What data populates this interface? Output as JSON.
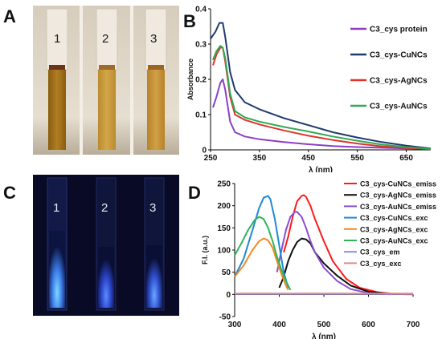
{
  "panels": {
    "A": {
      "letter": "A",
      "tube_labels": [
        "1",
        "2",
        "3"
      ]
    },
    "B": {
      "letter": "B"
    },
    "C": {
      "letter": "C",
      "tube_labels": [
        "1",
        "2",
        "3"
      ]
    },
    "D": {
      "letter": "D"
    }
  },
  "colors": {
    "protein": "#8b3fc4",
    "cunc": "#1f3a6e",
    "agnc": "#e0332a",
    "aunc": "#2faa53",
    "d_cu_emiss": "#ff1a1a",
    "d_ag_emiss": "#111111",
    "d_au_emiss": "#8a4ecf",
    "d_cu_exc": "#1e88d8",
    "d_ag_exc": "#f08a24",
    "d_au_exc": "#2fb35a",
    "d_em": "#8a8fd6",
    "d_exc": "#e08a8a"
  },
  "chart_data": [
    {
      "type": "line",
      "panel": "B",
      "xlabel": "λ (nm)",
      "ylabel": "Absorbance",
      "xlim": [
        250,
        700
      ],
      "ylim": [
        0,
        0.4
      ],
      "xticks": [
        250,
        350,
        450,
        550,
        650
      ],
      "yticks": [
        0,
        0.1,
        0.2,
        0.3,
        0.4
      ],
      "legend_position": "right",
      "series": [
        {
          "name": "C3_cys protein",
          "color_key": "protein",
          "x": [
            255,
            262,
            270,
            275,
            280,
            290,
            300,
            320,
            350,
            400,
            450,
            500,
            550,
            600,
            650,
            700
          ],
          "y": [
            0.12,
            0.15,
            0.19,
            0.2,
            0.17,
            0.08,
            0.05,
            0.038,
            0.03,
            0.022,
            0.016,
            0.011,
            0.008,
            0.006,
            0.004,
            0.003
          ]
        },
        {
          "name": "C3_cys-CuNCs",
          "color_key": "cunc",
          "x": [
            250,
            260,
            268,
            275,
            280,
            290,
            300,
            320,
            350,
            400,
            450,
            500,
            550,
            600,
            650,
            700
          ],
          "y": [
            0.315,
            0.335,
            0.36,
            0.36,
            0.32,
            0.22,
            0.17,
            0.135,
            0.115,
            0.09,
            0.07,
            0.05,
            0.035,
            0.022,
            0.012,
            0.004
          ]
        },
        {
          "name": "C3_cys-AgNCs",
          "color_key": "agnc",
          "x": [
            255,
            262,
            270,
            275,
            280,
            290,
            300,
            320,
            350,
            400,
            450,
            500,
            550,
            600,
            650,
            700
          ],
          "y": [
            0.24,
            0.27,
            0.29,
            0.29,
            0.25,
            0.15,
            0.1,
            0.085,
            0.072,
            0.055,
            0.04,
            0.028,
            0.018,
            0.01,
            0.005,
            0.002
          ]
        },
        {
          "name": "C3_cys-AuNCs",
          "color_key": "aunc",
          "x": [
            255,
            262,
            270,
            275,
            280,
            290,
            300,
            320,
            350,
            400,
            450,
            500,
            550,
            600,
            650,
            700
          ],
          "y": [
            0.255,
            0.28,
            0.295,
            0.29,
            0.26,
            0.16,
            0.11,
            0.092,
            0.08,
            0.065,
            0.052,
            0.038,
            0.026,
            0.015,
            0.008,
            0.003
          ]
        }
      ]
    },
    {
      "type": "line",
      "panel": "D",
      "xlabel": "λ (nm)",
      "ylabel": "F.I. (a.u.)",
      "xlim": [
        300,
        700
      ],
      "ylim": [
        -50,
        250
      ],
      "xticks": [
        300,
        400,
        500,
        600,
        700
      ],
      "yticks": [
        -50,
        0,
        50,
        100,
        150,
        200,
        250
      ],
      "legend_position": "right",
      "series": [
        {
          "name": "C3_cys-CuNCs_emiss",
          "color_key": "d_cu_emiss",
          "x": [
            410,
            420,
            430,
            440,
            450,
            455,
            460,
            470,
            480,
            500,
            520,
            550,
            580,
            620,
            660,
            700
          ],
          "y": [
            95,
            130,
            175,
            210,
            222,
            224,
            220,
            200,
            170,
            120,
            75,
            35,
            15,
            5,
            1,
            0
          ]
        },
        {
          "name": "C3_cys-AgNCs_emiss",
          "color_key": "d_ag_emiss",
          "x": [
            400,
            410,
            420,
            430,
            440,
            450,
            460,
            470,
            480,
            500,
            530,
            560,
            600,
            650
          ],
          "y": [
            15,
            40,
            75,
            100,
            118,
            126,
            124,
            115,
            95,
            70,
            42,
            20,
            6,
            1
          ]
        },
        {
          "name": "C3_cys-AuNCs_emiss",
          "color_key": "d_au_emiss",
          "x": [
            395,
            405,
            415,
            425,
            435,
            440,
            450,
            460,
            470,
            480,
            500,
            530,
            560,
            600,
            650
          ],
          "y": [
            50,
            100,
            145,
            175,
            186,
            186,
            175,
            150,
            120,
            95,
            60,
            30,
            12,
            3,
            0
          ]
        },
        {
          "name": "C3_cys-CuNCs_exc",
          "color_key": "d_cu_exc",
          "x": [
            300,
            320,
            340,
            355,
            365,
            375,
            380,
            390,
            400,
            410,
            420
          ],
          "y": [
            40,
            80,
            145,
            195,
            218,
            222,
            215,
            170,
            110,
            50,
            15
          ]
        },
        {
          "name": "C3_cys-AgNCs_exc",
          "color_key": "d_ag_exc",
          "x": [
            300,
            320,
            340,
            355,
            365,
            375,
            385,
            395,
            405,
            415,
            420
          ],
          "y": [
            40,
            65,
            100,
            120,
            126,
            122,
            105,
            75,
            45,
            20,
            10
          ]
        },
        {
          "name": "C3_cys-AuNCs_exc",
          "color_key": "d_au_exc",
          "x": [
            300,
            315,
            330,
            345,
            355,
            365,
            375,
            385,
            395,
            405,
            415,
            425
          ],
          "y": [
            88,
            115,
            145,
            168,
            175,
            170,
            150,
            120,
            85,
            55,
            30,
            10
          ]
        },
        {
          "name": "C3_cys_em",
          "color_key": "d_em",
          "x": [
            300,
            400,
            500,
            600,
            700
          ],
          "y": [
            1,
            1,
            1,
            1,
            1
          ]
        },
        {
          "name": "C3_cys_exc",
          "color_key": "d_exc",
          "x": [
            300,
            400,
            500,
            600,
            700
          ],
          "y": [
            2,
            2,
            2,
            2,
            2
          ]
        }
      ]
    }
  ]
}
